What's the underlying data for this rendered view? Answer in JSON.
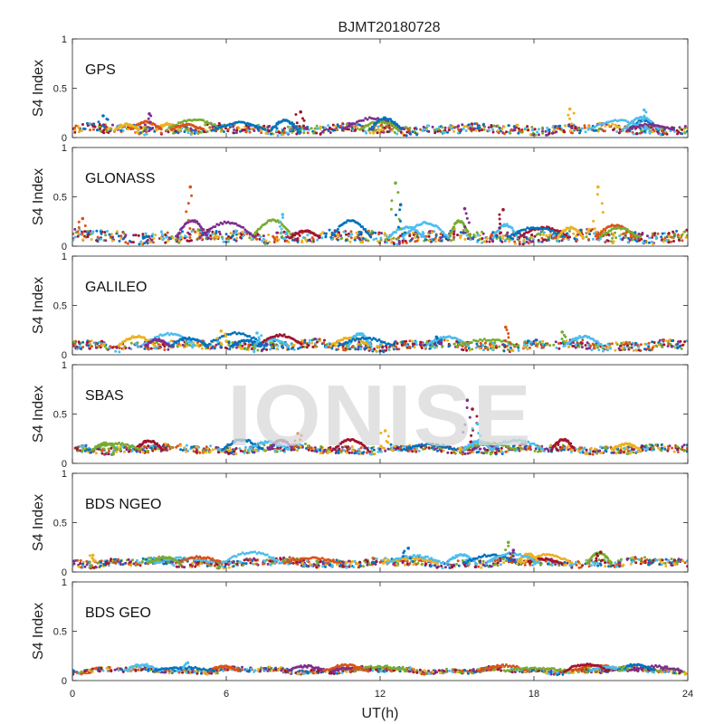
{
  "chart_data": {
    "type": "scatter",
    "title": "BJMT20180728",
    "xlabel": "UT(h)",
    "ylabel": "S4 Index",
    "xlim": [
      0,
      24
    ],
    "ylim": [
      0,
      1
    ],
    "x_ticks": [
      "0",
      "6",
      "12",
      "18",
      "24"
    ],
    "y_ticks": [
      "0",
      "0.5",
      "1"
    ],
    "watermark": "IONISE",
    "series_colors": [
      "#0072BD",
      "#D95319",
      "#EDB120",
      "#7E2F8E",
      "#77AC30",
      "#4DBEEE",
      "#A2142F"
    ],
    "panels": [
      {
        "label": "GPS",
        "baseline": 0.08,
        "spread": 0.06,
        "spikes": [
          {
            "x": 1.2,
            "y": 0.22
          },
          {
            "x": 3.0,
            "y": 0.24
          },
          {
            "x": 8.9,
            "y": 0.26
          },
          {
            "x": 19.4,
            "y": 0.29
          },
          {
            "x": 22.3,
            "y": 0.28
          }
        ]
      },
      {
        "label": "GLONASS",
        "baseline": 0.09,
        "spread": 0.08,
        "spikes": [
          {
            "x": 4.6,
            "y": 0.6
          },
          {
            "x": 12.6,
            "y": 0.64
          },
          {
            "x": 12.8,
            "y": 0.42
          },
          {
            "x": 15.3,
            "y": 0.38
          },
          {
            "x": 16.8,
            "y": 0.37
          },
          {
            "x": 20.5,
            "y": 0.6
          },
          {
            "x": 8.2,
            "y": 0.32
          },
          {
            "x": 0.4,
            "y": 0.28
          }
        ]
      },
      {
        "label": "GALILEO",
        "baseline": 0.09,
        "spread": 0.06,
        "spikes": [
          {
            "x": 5.8,
            "y": 0.24
          },
          {
            "x": 7.2,
            "y": 0.22
          },
          {
            "x": 16.9,
            "y": 0.28
          },
          {
            "x": 19.1,
            "y": 0.23
          },
          {
            "x": 14.2,
            "y": 0.18
          }
        ]
      },
      {
        "label": "SBAS",
        "baseline": 0.14,
        "spread": 0.05,
        "spikes": [
          {
            "x": 15.4,
            "y": 0.64
          },
          {
            "x": 15.6,
            "y": 0.55
          },
          {
            "x": 12.2,
            "y": 0.33
          },
          {
            "x": 15.8,
            "y": 0.4
          },
          {
            "x": 8.8,
            "y": 0.3
          }
        ]
      },
      {
        "label": "BDS NGEO",
        "baseline": 0.09,
        "spread": 0.05,
        "spikes": [
          {
            "x": 17.0,
            "y": 0.3
          },
          {
            "x": 13.1,
            "y": 0.24
          },
          {
            "x": 17.2,
            "y": 0.22
          },
          {
            "x": 20.6,
            "y": 0.2
          },
          {
            "x": 0.8,
            "y": 0.17
          }
        ]
      },
      {
        "label": "BDS GEO",
        "baseline": 0.1,
        "spread": 0.03,
        "spikes": [
          {
            "x": 4.5,
            "y": 0.18
          },
          {
            "x": 11.0,
            "y": 0.13
          },
          {
            "x": 21.5,
            "y": 0.14
          }
        ]
      }
    ]
  }
}
